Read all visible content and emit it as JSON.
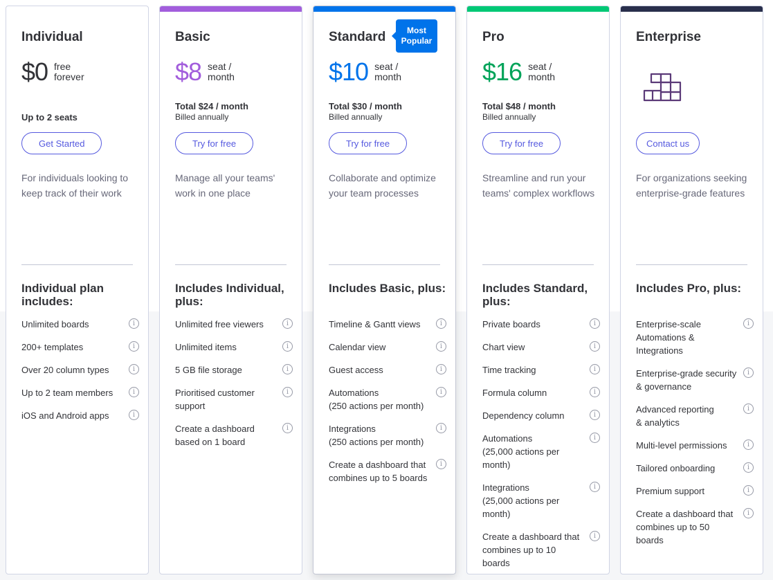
{
  "colors": {
    "accent": "#5559df",
    "basic": "#a25ddc",
    "standard": "#0073ea",
    "pro": "#00c875",
    "enterprise": "#292f4c"
  },
  "plans": [
    {
      "name": "Individual",
      "price": "$0",
      "price_unit": "free\nforever",
      "price_color": "#323338",
      "seats": "Up to 2 seats",
      "cta": "Get Started",
      "description": "For individuals looking to keep track of their work",
      "includes_title": "Individual plan includes:",
      "features": [
        "Unlimited boards",
        "200+ templates",
        "Over 20 column types",
        "Up to 2 team members",
        "iOS and Android apps"
      ]
    },
    {
      "name": "Basic",
      "price": "$8",
      "price_unit": "seat /\nmonth",
      "price_color": "#a25ddc",
      "total": "Total $24 / month",
      "billed": "Billed annually",
      "cta": "Try for free",
      "description": "Manage all your teams' work in one place",
      "includes_title": "Includes Individual, plus:",
      "features": [
        "Unlimited free viewers",
        "Unlimited items",
        "5 GB file storage",
        "Prioritised customer support",
        "Create a dashboard based on 1 board"
      ]
    },
    {
      "name": "Standard",
      "badge": "Most Popular",
      "price": "$10",
      "price_unit": "seat /\nmonth",
      "price_color": "#0073ea",
      "total": "Total $30 / month",
      "billed": "Billed annually",
      "cta": "Try for free",
      "description": "Collaborate and optimize your team processes",
      "includes_title": "Includes Basic, plus:",
      "features": [
        "Timeline & Gantt views",
        "Calendar view",
        "Guest access",
        "Automations\n(250 actions per month)",
        "Integrations\n(250 actions per month)",
        "Create a dashboard that combines up to 5 boards"
      ]
    },
    {
      "name": "Pro",
      "price": "$16",
      "price_unit": "seat /\nmonth",
      "price_color": "#00a359",
      "total": "Total $48 / month",
      "billed": "Billed annually",
      "cta": "Try for free",
      "description": "Streamline and run your teams' complex workflows",
      "includes_title": "Includes Standard, plus:",
      "features": [
        "Private boards",
        "Chart view",
        "Time tracking",
        "Formula column",
        "Dependency column",
        "Automations\n(25,000 actions per month)",
        "Integrations\n(25,000 actions per month)",
        "Create a dashboard that combines up to 10 boards"
      ]
    },
    {
      "name": "Enterprise",
      "icon": "building-blocks-icon",
      "cta": "Contact us",
      "description": "For organizations seeking enterprise-grade features",
      "includes_title": "Includes Pro, plus:",
      "features": [
        "Enterprise-scale Automations & Integrations",
        "Enterprise-grade security\n& governance",
        "Advanced reporting\n& analytics",
        "Multi-level permissions",
        "Tailored onboarding",
        "Premium support",
        "Create a dashboard that combines up to 50 boards"
      ]
    }
  ]
}
